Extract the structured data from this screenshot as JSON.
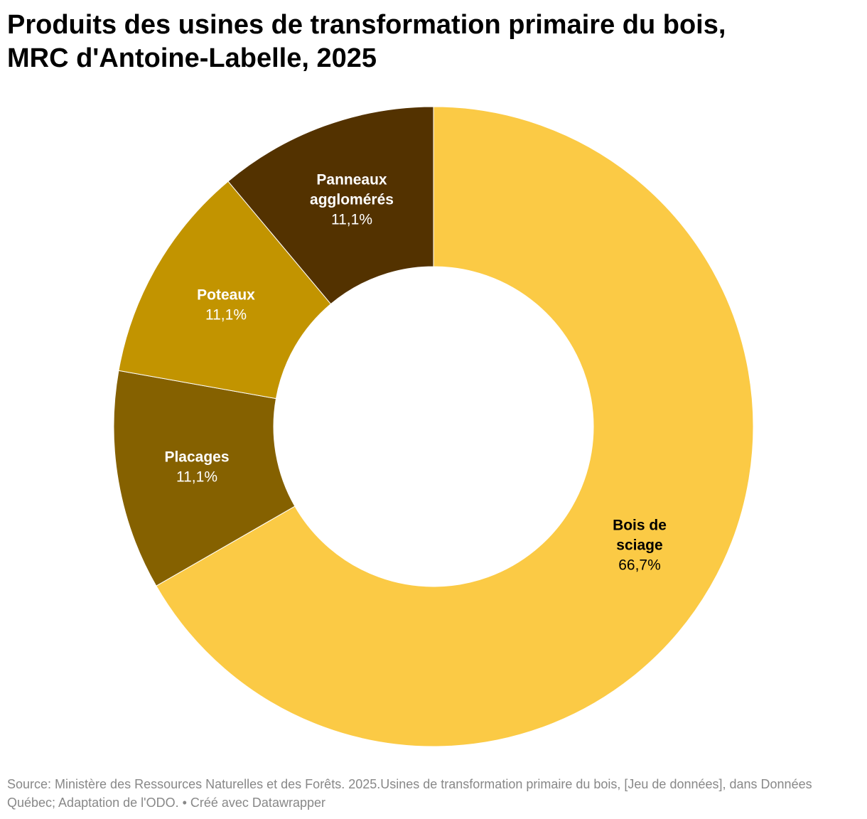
{
  "chart_data": {
    "type": "pie",
    "variant": "donut",
    "title_lines": [
      "Produits des usines de transformation primaire du bois,",
      "MRC d'Antoine-Labelle, 2025"
    ],
    "slices": [
      {
        "name_lines": [
          "Bois de",
          "sciage"
        ],
        "value": 66.7,
        "value_label": "66,7%",
        "color": "#fbca45",
        "label_color": "#000000"
      },
      {
        "name_lines": [
          "Placages"
        ],
        "value": 11.1,
        "value_label": "11,1%",
        "color": "#856100",
        "label_color": "#ffffff"
      },
      {
        "name_lines": [
          "Poteaux"
        ],
        "value": 11.1,
        "value_label": "11,1%",
        "color": "#c29400",
        "label_color": "#ffffff"
      },
      {
        "name_lines": [
          "Panneaux",
          "agglomérés"
        ],
        "value": 11.1,
        "value_label": "11,1%",
        "color": "#533200",
        "label_color": "#ffffff"
      }
    ],
    "start": "top",
    "direction": "clockwise"
  },
  "footer": {
    "source_text": "Source: Ministère des Ressources Naturelles et des Forêts. 2025.Usines de transformation primaire du bois, [Jeu de données], dans Données Québec; Adaptation de l'ODO. • Créé avec Datawrapper"
  }
}
